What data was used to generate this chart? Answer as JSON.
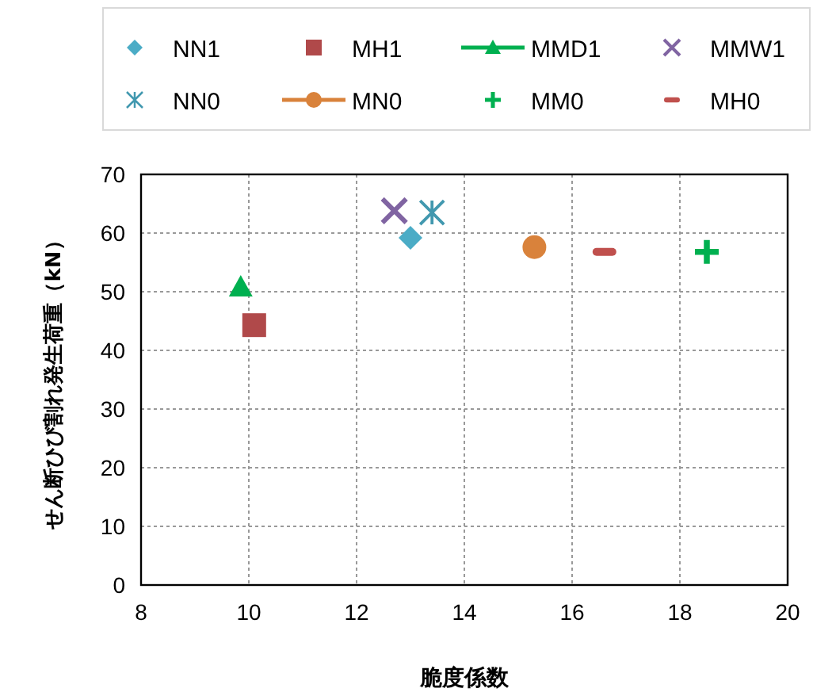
{
  "chart_data": {
    "type": "scatter",
    "xlabel": "脆度係数",
    "ylabel": "せん断ひび割れ発生荷重（kN）",
    "xlim": [
      8,
      20
    ],
    "ylim": [
      0,
      70
    ],
    "xticks": [
      8,
      10,
      12,
      14,
      16,
      18,
      20
    ],
    "yticks": [
      0,
      10,
      20,
      30,
      40,
      50,
      60,
      70
    ],
    "grid": true,
    "legend": "top",
    "series": [
      {
        "name": "NN1",
        "color": "#4bacc6",
        "marker": "diamond",
        "x": [
          13.0
        ],
        "values": [
          59.2
        ]
      },
      {
        "name": "MH1",
        "color": "#b0494a",
        "marker": "square",
        "x": [
          10.1
        ],
        "values": [
          44.3
        ]
      },
      {
        "name": "MMD1",
        "type": "line",
        "color": "#00b050",
        "marker": "triangle",
        "x": [
          9.85
        ],
        "values": [
          50.8
        ]
      },
      {
        "name": "MMW1",
        "color": "#8064a2",
        "marker": "x",
        "x": [
          12.7
        ],
        "values": [
          63.8
        ]
      },
      {
        "name": "NN0",
        "color": "#4198af",
        "marker": "cross",
        "x": [
          13.4
        ],
        "values": [
          63.5
        ]
      },
      {
        "name": "MN0",
        "type": "line",
        "color": "#d9823b",
        "marker": "circle",
        "x": [
          15.3
        ],
        "values": [
          57.6
        ]
      },
      {
        "name": "MM0",
        "color": "#00b050",
        "marker": "plus",
        "x": [
          18.5
        ],
        "values": [
          56.8
        ]
      },
      {
        "name": "MH0",
        "color": "#c0504d",
        "x": [
          16.6
        ],
        "values": [
          56.8
        ]
      }
    ]
  }
}
